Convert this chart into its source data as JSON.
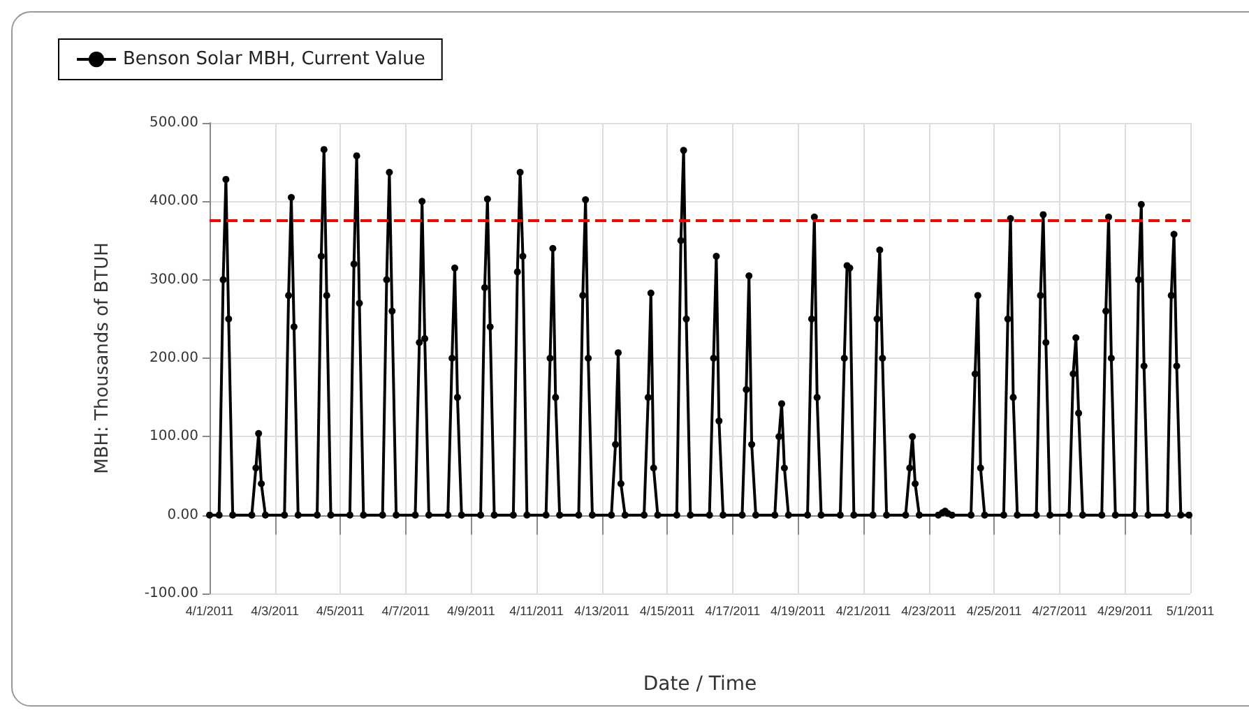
{
  "chart_data": {
    "type": "line",
    "xlabel": "Date / Time",
    "ylabel": "MBH: Thousands of BTUH",
    "xlim": [
      "2011-04-01",
      "2011-05-01"
    ],
    "xticks": [
      {
        "value": "2011-04-01",
        "label": "4/1/2011"
      },
      {
        "value": "2011-04-03",
        "label": "4/3/2011"
      },
      {
        "value": "2011-04-05",
        "label": "4/5/2011"
      },
      {
        "value": "2011-04-07",
        "label": "4/7/2011"
      },
      {
        "value": "2011-04-09",
        "label": "4/9/2011"
      },
      {
        "value": "2011-04-11",
        "label": "4/11/2011"
      },
      {
        "value": "2011-04-13",
        "label": "4/13/2011"
      },
      {
        "value": "2011-04-15",
        "label": "4/15/2011"
      },
      {
        "value": "2011-04-17",
        "label": "4/17/2011"
      },
      {
        "value": "2011-04-19",
        "label": "4/19/2011"
      },
      {
        "value": "2011-04-21",
        "label": "4/21/2011"
      },
      {
        "value": "2011-04-23",
        "label": "4/23/2011"
      },
      {
        "value": "2011-04-25",
        "label": "4/25/2011"
      },
      {
        "value": "2011-04-27",
        "label": "4/27/2011"
      },
      {
        "value": "2011-04-29",
        "label": "4/29/2011"
      },
      {
        "value": "2011-05-01",
        "label": "5/1/2011"
      }
    ],
    "ylim": [
      -100,
      500
    ],
    "yticks": [
      {
        "value": -100,
        "label": "-100.00"
      },
      {
        "value": 0,
        "label": "0.00"
      },
      {
        "value": 100,
        "label": "100.00"
      },
      {
        "value": 200,
        "label": "200.00"
      },
      {
        "value": 300,
        "label": "300.00"
      },
      {
        "value": 400,
        "label": "400.00"
      },
      {
        "value": 500,
        "label": "500.00"
      }
    ],
    "grid": true,
    "legend": "top left",
    "marker": "circle",
    "line_style": "solid",
    "ref_lines": [
      {
        "axis": "y",
        "value": 375,
        "color": "#ff0000",
        "line_style": "dashed"
      }
    ],
    "series": [
      {
        "name": "Benson Solar MBH, Current Value",
        "color": "#000000",
        "x": [
          "2011-04-01T00:00",
          "2011-04-01T07:00",
          "2011-04-01T10:00",
          "2011-04-01T12:00",
          "2011-04-01T14:00",
          "2011-04-01T17:00",
          "2011-04-02T07:00",
          "2011-04-02T10:00",
          "2011-04-02T12:00",
          "2011-04-02T14:00",
          "2011-04-02T17:00",
          "2011-04-03T07:00",
          "2011-04-03T10:00",
          "2011-04-03T12:00",
          "2011-04-03T14:00",
          "2011-04-03T17:00",
          "2011-04-04T07:00",
          "2011-04-04T10:00",
          "2011-04-04T12:00",
          "2011-04-04T14:00",
          "2011-04-04T17:00",
          "2011-04-05T07:00",
          "2011-04-05T10:00",
          "2011-04-05T12:00",
          "2011-04-05T14:00",
          "2011-04-05T17:00",
          "2011-04-06T07:00",
          "2011-04-06T10:00",
          "2011-04-06T12:00",
          "2011-04-06T14:00",
          "2011-04-06T17:00",
          "2011-04-07T07:00",
          "2011-04-07T10:00",
          "2011-04-07T12:00",
          "2011-04-07T14:00",
          "2011-04-07T17:00",
          "2011-04-08T07:00",
          "2011-04-08T10:00",
          "2011-04-08T12:00",
          "2011-04-08T14:00",
          "2011-04-08T17:00",
          "2011-04-09T07:00",
          "2011-04-09T10:00",
          "2011-04-09T12:00",
          "2011-04-09T14:00",
          "2011-04-09T17:00",
          "2011-04-10T07:00",
          "2011-04-10T10:00",
          "2011-04-10T12:00",
          "2011-04-10T14:00",
          "2011-04-10T17:00",
          "2011-04-11T07:00",
          "2011-04-11T10:00",
          "2011-04-11T12:00",
          "2011-04-11T14:00",
          "2011-04-11T17:00",
          "2011-04-12T07:00",
          "2011-04-12T10:00",
          "2011-04-12T12:00",
          "2011-04-12T14:00",
          "2011-04-12T17:00",
          "2011-04-13T07:00",
          "2011-04-13T10:00",
          "2011-04-13T12:00",
          "2011-04-13T14:00",
          "2011-04-13T17:00",
          "2011-04-14T07:00",
          "2011-04-14T10:00",
          "2011-04-14T12:00",
          "2011-04-14T14:00",
          "2011-04-14T17:00",
          "2011-04-15T07:00",
          "2011-04-15T10:00",
          "2011-04-15T12:00",
          "2011-04-15T14:00",
          "2011-04-15T17:00",
          "2011-04-16T07:00",
          "2011-04-16T10:00",
          "2011-04-16T12:00",
          "2011-04-16T14:00",
          "2011-04-16T17:00",
          "2011-04-17T07:00",
          "2011-04-17T10:00",
          "2011-04-17T12:00",
          "2011-04-17T14:00",
          "2011-04-17T17:00",
          "2011-04-18T07:00",
          "2011-04-18T10:00",
          "2011-04-18T12:00",
          "2011-04-18T14:00",
          "2011-04-18T17:00",
          "2011-04-19T07:00",
          "2011-04-19T10:00",
          "2011-04-19T12:00",
          "2011-04-19T14:00",
          "2011-04-19T17:00",
          "2011-04-20T07:00",
          "2011-04-20T10:00",
          "2011-04-20T12:00",
          "2011-04-20T14:00",
          "2011-04-20T17:00",
          "2011-04-21T07:00",
          "2011-04-21T10:00",
          "2011-04-21T12:00",
          "2011-04-21T14:00",
          "2011-04-21T17:00",
          "2011-04-22T07:00",
          "2011-04-22T10:00",
          "2011-04-22T12:00",
          "2011-04-22T14:00",
          "2011-04-22T17:00",
          "2011-04-23T07:00",
          "2011-04-23T10:00",
          "2011-04-23T12:00",
          "2011-04-23T14:00",
          "2011-04-23T17:00",
          "2011-04-24T07:00",
          "2011-04-24T10:00",
          "2011-04-24T12:00",
          "2011-04-24T14:00",
          "2011-04-24T17:00",
          "2011-04-25T07:00",
          "2011-04-25T10:00",
          "2011-04-25T12:00",
          "2011-04-25T14:00",
          "2011-04-25T17:00",
          "2011-04-26T07:00",
          "2011-04-26T10:00",
          "2011-04-26T12:00",
          "2011-04-26T14:00",
          "2011-04-26T17:00",
          "2011-04-27T07:00",
          "2011-04-27T10:00",
          "2011-04-27T12:00",
          "2011-04-27T14:00",
          "2011-04-27T17:00",
          "2011-04-28T07:00",
          "2011-04-28T10:00",
          "2011-04-28T12:00",
          "2011-04-28T14:00",
          "2011-04-28T17:00",
          "2011-04-29T07:00",
          "2011-04-29T10:00",
          "2011-04-29T12:00",
          "2011-04-29T14:00",
          "2011-04-29T17:00",
          "2011-04-30T07:00",
          "2011-04-30T10:00",
          "2011-04-30T12:00",
          "2011-04-30T14:00",
          "2011-04-30T17:00",
          "2011-04-30T23:00"
        ],
        "values": [
          0,
          0,
          300,
          428,
          250,
          0,
          0,
          60,
          104,
          40,
          0,
          0,
          280,
          405,
          240,
          0,
          0,
          330,
          466,
          280,
          0,
          0,
          320,
          458,
          270,
          0,
          0,
          300,
          437,
          260,
          0,
          0,
          220,
          400,
          225,
          0,
          0,
          200,
          315,
          150,
          0,
          0,
          290,
          403,
          240,
          0,
          0,
          310,
          437,
          330,
          0,
          0,
          200,
          340,
          150,
          0,
          0,
          280,
          402,
          200,
          0,
          0,
          90,
          207,
          40,
          0,
          0,
          150,
          283,
          60,
          0,
          0,
          350,
          465,
          250,
          0,
          0,
          200,
          330,
          120,
          0,
          0,
          160,
          305,
          90,
          0,
          0,
          100,
          142,
          60,
          0,
          0,
          250,
          380,
          150,
          0,
          0,
          200,
          318,
          315,
          0,
          0,
          250,
          338,
          200,
          0,
          0,
          60,
          100,
          40,
          0,
          0,
          3,
          5,
          2,
          0,
          0,
          180,
          280,
          60,
          0,
          0,
          250,
          378,
          150,
          0,
          0,
          280,
          383,
          220,
          0,
          0,
          180,
          226,
          130,
          0,
          0,
          260,
          380,
          200,
          0,
          0,
          300,
          396,
          190,
          0,
          0,
          280,
          358,
          190,
          0,
          0
        ]
      }
    ]
  }
}
